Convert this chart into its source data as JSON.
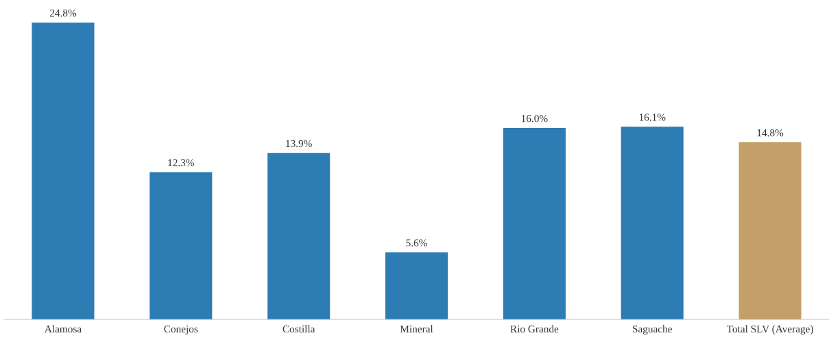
{
  "chart_data": {
    "type": "bar",
    "categories": [
      "Alamosa",
      "Conejos",
      "Costilla",
      "Mineral",
      "Rio Grande",
      "Saguache",
      "Total SLV (Average)"
    ],
    "values": [
      24.8,
      12.3,
      13.9,
      5.6,
      16.0,
      16.1,
      14.8
    ],
    "colors": [
      "#2e7cb4",
      "#2e7cb4",
      "#2e7cb4",
      "#2e7cb4",
      "#2e7cb4",
      "#2e7cb4",
      "#c4a068"
    ],
    "value_labels": [
      "24.8%",
      "12.3%",
      "13.9%",
      "5.6%",
      "16.0%",
      "16.1%",
      "14.8%"
    ],
    "grid": false,
    "legend": false
  }
}
